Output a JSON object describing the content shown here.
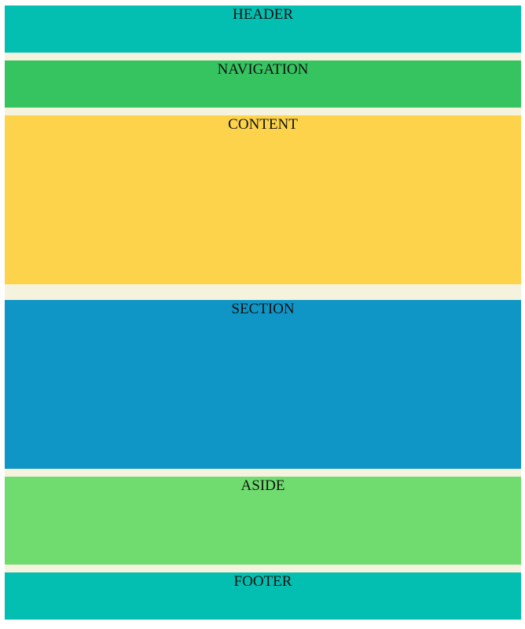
{
  "layout": {
    "background": "#f5f3dd",
    "blocks": [
      {
        "id": "header",
        "label": "HEADER",
        "color": "#03bfb1"
      },
      {
        "id": "navigation",
        "label": "NAVIGATION",
        "color": "#36c461"
      },
      {
        "id": "content",
        "label": "CONTENT",
        "color": "#fcd34b"
      },
      {
        "id": "section",
        "label": "SECTION",
        "color": "#0f96c6"
      },
      {
        "id": "aside",
        "label": "ASIDE",
        "color": "#70dc70"
      },
      {
        "id": "footer",
        "label": "FOOTER",
        "color": "#03bfb1"
      }
    ]
  }
}
